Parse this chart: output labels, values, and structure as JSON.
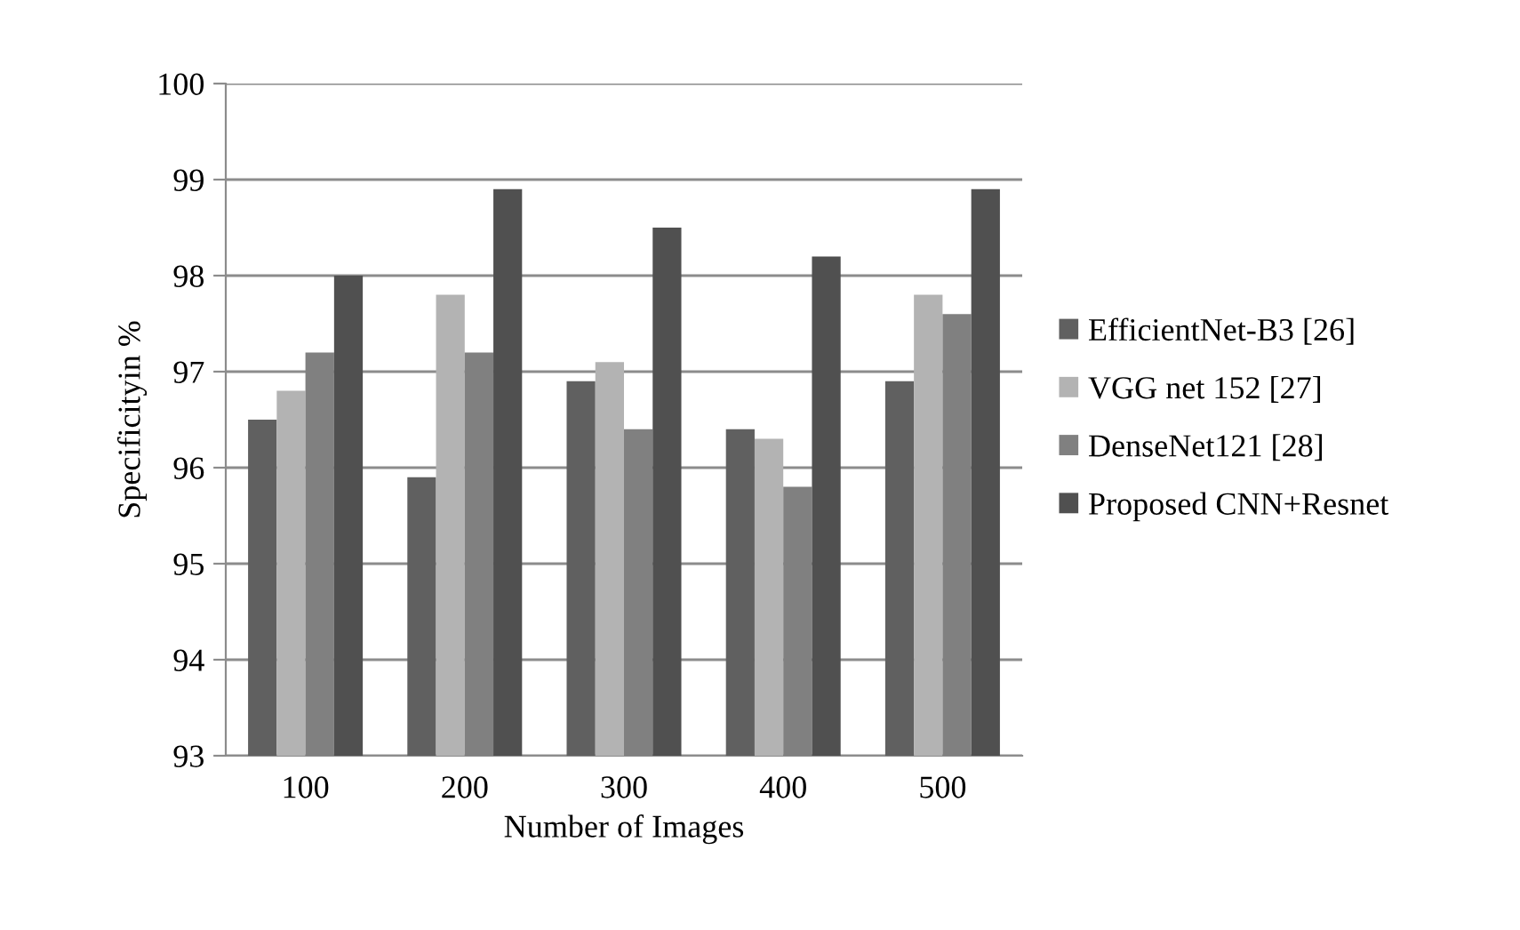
{
  "chart_data": {
    "type": "bar",
    "xlabel": "Number of Images",
    "ylabel": "Specificityin %",
    "categories": [
      "100",
      "200",
      "300",
      "400",
      "500"
    ],
    "series": [
      {
        "name": "EfficientNet-B3 [26]",
        "color": "#606060",
        "values": [
          96.5,
          95.9,
          96.9,
          96.4,
          96.9
        ]
      },
      {
        "name": "VGG net 152 [27]",
        "color": "#b3b3b3",
        "values": [
          96.8,
          97.8,
          97.1,
          96.3,
          97.8
        ]
      },
      {
        "name": "DenseNet121 [28]",
        "color": "#808080",
        "values": [
          97.2,
          97.2,
          96.4,
          95.8,
          97.6
        ]
      },
      {
        "name": "Proposed CNN+Resnet",
        "color": "#505050",
        "values": [
          98.0,
          98.9,
          98.5,
          98.2,
          98.9
        ]
      }
    ],
    "ylim": [
      93,
      100
    ],
    "yticks": [
      93,
      94,
      95,
      96,
      97,
      98,
      99,
      100
    ],
    "grid": "y",
    "legend": "right"
  }
}
